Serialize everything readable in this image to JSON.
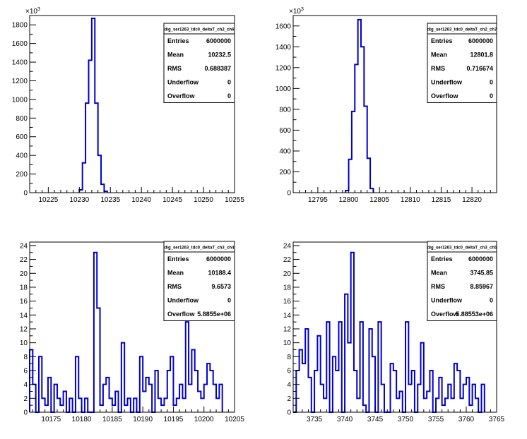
{
  "chart_data": [
    {
      "type": "bar",
      "style": "step-histogram",
      "title": "",
      "xlabel": "",
      "ylabel": "",
      "y_exponent_label": "×10³",
      "xlim": [
        10222,
        10255
      ],
      "ylim": [
        0,
        1900
      ],
      "xticks": [
        10225,
        10230,
        10235,
        10240,
        10245,
        10250,
        10255
      ],
      "yticks": [
        0,
        200,
        400,
        600,
        800,
        1000,
        1200,
        1400,
        1600,
        1800
      ],
      "series_color": "#0000cc",
      "bin_width": 0.5,
      "bins": [
        {
          "x": 10230.0,
          "y": 30
        },
        {
          "x": 10230.5,
          "y": 320
        },
        {
          "x": 10231.0,
          "y": 960
        },
        {
          "x": 10231.5,
          "y": 1420
        },
        {
          "x": 10232.0,
          "y": 1870
        },
        {
          "x": 10232.5,
          "y": 960
        },
        {
          "x": 10233.0,
          "y": 400
        },
        {
          "x": 10233.5,
          "y": 90
        },
        {
          "x": 10234.0,
          "y": 15
        }
      ],
      "stats": {
        "name": "dig_ser1263_tdc0_deltaT_ch2_ch6",
        "rows": [
          {
            "label": "Entries",
            "value": "6000000"
          },
          {
            "label": "Mean",
            "value": "10232.5"
          },
          {
            "label": "RMS",
            "value": "0.688387"
          },
          {
            "label": "Underflow",
            "value": "0"
          },
          {
            "label": "Overflow",
            "value": "0"
          }
        ]
      }
    },
    {
      "type": "bar",
      "style": "step-histogram",
      "title": "",
      "xlabel": "",
      "ylabel": "",
      "y_exponent_label": "×10³",
      "xlim": [
        12791,
        12824
      ],
      "ylim": [
        0,
        1700
      ],
      "xticks": [
        12795,
        12800,
        12805,
        12810,
        12815,
        12820
      ],
      "yticks": [
        0,
        200,
        400,
        600,
        800,
        1000,
        1200,
        1400,
        1600
      ],
      "series_color": "#0000cc",
      "bin_width": 0.5,
      "bins": [
        {
          "x": 12799.5,
          "y": 20
        },
        {
          "x": 12800.0,
          "y": 320
        },
        {
          "x": 12800.5,
          "y": 780
        },
        {
          "x": 12801.0,
          "y": 1230
        },
        {
          "x": 12801.5,
          "y": 1660
        },
        {
          "x": 12802.0,
          "y": 1400
        },
        {
          "x": 12802.5,
          "y": 830
        },
        {
          "x": 12803.0,
          "y": 330
        },
        {
          "x": 12803.5,
          "y": 40
        }
      ],
      "stats": {
        "name": "dig_ser1263_tdc0_deltaT_ch2_ch7",
        "rows": [
          {
            "label": "Entries",
            "value": "6000000"
          },
          {
            "label": "Mean",
            "value": "12801.8"
          },
          {
            "label": "RMS",
            "value": "0.716674"
          },
          {
            "label": "Underflow",
            "value": "0"
          },
          {
            "label": "Overflow",
            "value": "0"
          }
        ]
      }
    },
    {
      "type": "bar",
      "style": "step-histogram",
      "title": "",
      "xlabel": "",
      "ylabel": "",
      "y_exponent_label": "",
      "xlim": [
        10171.5,
        10205
      ],
      "ylim": [
        0,
        24.5
      ],
      "xticks": [
        10175,
        10180,
        10185,
        10190,
        10195,
        10200,
        10205
      ],
      "yticks": [
        0,
        2,
        4,
        6,
        8,
        10,
        12,
        14,
        16,
        18,
        20,
        22,
        24
      ],
      "series_color": "#0000cc",
      "bin_width": 0.5,
      "bins": [
        {
          "x": 10171.5,
          "y": 9
        },
        {
          "x": 10172.0,
          "y": 4
        },
        {
          "x": 10172.5,
          "y": 0
        },
        {
          "x": 10173.0,
          "y": 8
        },
        {
          "x": 10173.5,
          "y": 2
        },
        {
          "x": 10174.0,
          "y": 1
        },
        {
          "x": 10174.5,
          "y": 5
        },
        {
          "x": 10175.0,
          "y": 0
        },
        {
          "x": 10175.5,
          "y": 4
        },
        {
          "x": 10176.0,
          "y": 2
        },
        {
          "x": 10176.5,
          "y": 1
        },
        {
          "x": 10177.0,
          "y": 3
        },
        {
          "x": 10177.5,
          "y": 0
        },
        {
          "x": 10178.0,
          "y": 2
        },
        {
          "x": 10178.5,
          "y": 0
        },
        {
          "x": 10179.0,
          "y": 8
        },
        {
          "x": 10179.5,
          "y": 2
        },
        {
          "x": 10180.0,
          "y": 0
        },
        {
          "x": 10180.5,
          "y": 2
        },
        {
          "x": 10181.0,
          "y": 0
        },
        {
          "x": 10181.5,
          "y": 0
        },
        {
          "x": 10182.0,
          "y": 23
        },
        {
          "x": 10182.5,
          "y": 15
        },
        {
          "x": 10183.0,
          "y": 1
        },
        {
          "x": 10183.5,
          "y": 4
        },
        {
          "x": 10184.0,
          "y": 5
        },
        {
          "x": 10184.5,
          "y": 2
        },
        {
          "x": 10185.0,
          "y": 1
        },
        {
          "x": 10185.5,
          "y": 3
        },
        {
          "x": 10186.0,
          "y": 0
        },
        {
          "x": 10186.5,
          "y": 10
        },
        {
          "x": 10187.0,
          "y": 1
        },
        {
          "x": 10187.5,
          "y": 2
        },
        {
          "x": 10188.0,
          "y": 0
        },
        {
          "x": 10188.5,
          "y": 2
        },
        {
          "x": 10189.0,
          "y": 0
        },
        {
          "x": 10189.5,
          "y": 8
        },
        {
          "x": 10190.0,
          "y": 3
        },
        {
          "x": 10190.5,
          "y": 5
        },
        {
          "x": 10191.0,
          "y": 4
        },
        {
          "x": 10191.5,
          "y": 0
        },
        {
          "x": 10192.0,
          "y": 6
        },
        {
          "x": 10192.5,
          "y": 2
        },
        {
          "x": 10193.0,
          "y": 1
        },
        {
          "x": 10193.5,
          "y": 2
        },
        {
          "x": 10194.0,
          "y": 6
        },
        {
          "x": 10194.5,
          "y": 8
        },
        {
          "x": 10195.0,
          "y": 1
        },
        {
          "x": 10195.5,
          "y": 2
        },
        {
          "x": 10196.0,
          "y": 4
        },
        {
          "x": 10196.5,
          "y": 2
        },
        {
          "x": 10197.0,
          "y": 13
        },
        {
          "x": 10197.5,
          "y": 4
        },
        {
          "x": 10198.0,
          "y": 9
        },
        {
          "x": 10198.5,
          "y": 6
        },
        {
          "x": 10199.0,
          "y": 3
        },
        {
          "x": 10199.5,
          "y": 2
        },
        {
          "x": 10200.0,
          "y": 4
        },
        {
          "x": 10200.5,
          "y": 7
        },
        {
          "x": 10201.0,
          "y": 6
        },
        {
          "x": 10201.5,
          "y": 4
        },
        {
          "x": 10202.0,
          "y": 2
        },
        {
          "x": 10202.5,
          "y": 4
        }
      ],
      "stats": {
        "name": "dig_ser1263_tdc0_deltaT_ch3_ch4",
        "rows": [
          {
            "label": "Entries",
            "value": "6000000"
          },
          {
            "label": "Mean",
            "value": "10188.4"
          },
          {
            "label": "RMS",
            "value": "9.6573"
          },
          {
            "label": "Underflow",
            "value": "0"
          },
          {
            "label": "Overflow",
            "value": "5.8855e+06"
          }
        ]
      }
    },
    {
      "type": "bar",
      "style": "step-histogram",
      "title": "",
      "xlabel": "",
      "ylabel": "",
      "y_exponent_label": "",
      "xlim": [
        3731.5,
        3765
      ],
      "ylim": [
        0,
        24.5
      ],
      "xticks": [
        3735,
        3740,
        3745,
        3750,
        3755,
        3760,
        3765
      ],
      "yticks": [
        0,
        2,
        4,
        6,
        8,
        10,
        12,
        14,
        16,
        18,
        20,
        22,
        24
      ],
      "series_color": "#0000cc",
      "bin_width": 0.5,
      "bins": [
        {
          "x": 3731.5,
          "y": 0
        },
        {
          "x": 3732.0,
          "y": 6
        },
        {
          "x": 3732.5,
          "y": 9
        },
        {
          "x": 3733.0,
          "y": 7
        },
        {
          "x": 3733.5,
          "y": 12
        },
        {
          "x": 3734.0,
          "y": 5
        },
        {
          "x": 3734.5,
          "y": 0
        },
        {
          "x": 3735.0,
          "y": 6
        },
        {
          "x": 3735.5,
          "y": 11
        },
        {
          "x": 3736.0,
          "y": 4
        },
        {
          "x": 3736.5,
          "y": 2
        },
        {
          "x": 3737.0,
          "y": 13
        },
        {
          "x": 3737.5,
          "y": 0
        },
        {
          "x": 3738.0,
          "y": 8
        },
        {
          "x": 3738.5,
          "y": 6
        },
        {
          "x": 3739.0,
          "y": 13
        },
        {
          "x": 3739.5,
          "y": 0
        },
        {
          "x": 3740.0,
          "y": 17
        },
        {
          "x": 3740.5,
          "y": 10
        },
        {
          "x": 3741.0,
          "y": 23
        },
        {
          "x": 3741.5,
          "y": 6
        },
        {
          "x": 3742.0,
          "y": 2
        },
        {
          "x": 3742.5,
          "y": 13
        },
        {
          "x": 3743.0,
          "y": 1
        },
        {
          "x": 3743.5,
          "y": 0
        },
        {
          "x": 3744.0,
          "y": 12
        },
        {
          "x": 3744.5,
          "y": 8
        },
        {
          "x": 3745.0,
          "y": 0
        },
        {
          "x": 3745.5,
          "y": 13
        },
        {
          "x": 3746.0,
          "y": 4
        },
        {
          "x": 3746.5,
          "y": 0
        },
        {
          "x": 3747.0,
          "y": 0
        },
        {
          "x": 3747.5,
          "y": 7
        },
        {
          "x": 3748.0,
          "y": 6
        },
        {
          "x": 3748.5,
          "y": 2
        },
        {
          "x": 3749.0,
          "y": 3
        },
        {
          "x": 3749.5,
          "y": 0
        },
        {
          "x": 3750.0,
          "y": 13
        },
        {
          "x": 3750.5,
          "y": 4
        },
        {
          "x": 3751.0,
          "y": 6
        },
        {
          "x": 3751.5,
          "y": 0
        },
        {
          "x": 3752.0,
          "y": 4
        },
        {
          "x": 3752.5,
          "y": 10
        },
        {
          "x": 3753.0,
          "y": 2
        },
        {
          "x": 3753.5,
          "y": 3
        },
        {
          "x": 3754.0,
          "y": 6
        },
        {
          "x": 3754.5,
          "y": 0
        },
        {
          "x": 3755.0,
          "y": 2
        },
        {
          "x": 3755.5,
          "y": 5
        },
        {
          "x": 3756.0,
          "y": 1
        },
        {
          "x": 3756.5,
          "y": 2
        },
        {
          "x": 3757.0,
          "y": 4
        },
        {
          "x": 3757.5,
          "y": 2
        },
        {
          "x": 3758.0,
          "y": 7
        },
        {
          "x": 3758.5,
          "y": 6
        },
        {
          "x": 3759.0,
          "y": 2
        },
        {
          "x": 3759.5,
          "y": 4
        },
        {
          "x": 3760.0,
          "y": 5
        },
        {
          "x": 3760.5,
          "y": 1
        },
        {
          "x": 3761.0,
          "y": 4
        },
        {
          "x": 3761.5,
          "y": 2
        },
        {
          "x": 3762.0,
          "y": 0
        },
        {
          "x": 3762.5,
          "y": 4
        }
      ],
      "stats": {
        "name": "dig_ser1263_tdc0_deltaT_ch3_ch5",
        "rows": [
          {
            "label": "Entries",
            "value": "6000000"
          },
          {
            "label": "Mean",
            "value": "3745.85"
          },
          {
            "label": "RMS",
            "value": "8.85967"
          },
          {
            "label": "Underflow",
            "value": "0"
          },
          {
            "label": "Overflow",
            "value": "5.88553e+06"
          }
        ]
      }
    }
  ]
}
